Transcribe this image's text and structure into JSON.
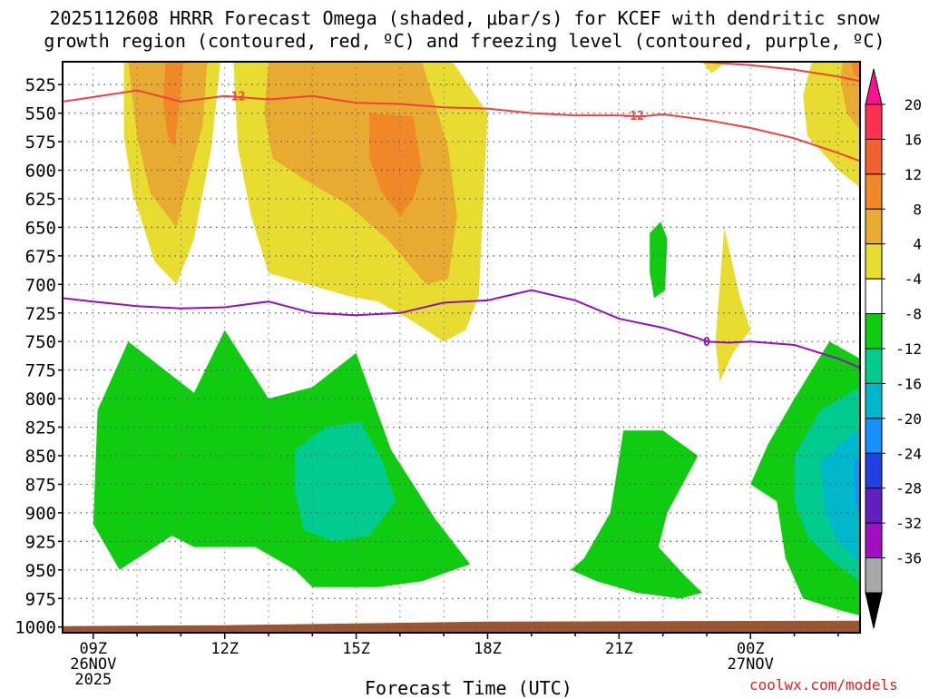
{
  "chart_data": {
    "type": "heatmap",
    "title_line1": "2025112608 HRRR Forecast Omega (shaded, μbar/s) for KCEF with dendritic snow",
    "title_line2": "growth region (contoured, red, ºC) and freezing level (contoured, purple, ºC)",
    "xlabel": "Forecast Time (UTC)",
    "credit": "coolwx.com/models",
    "x_range_hours": [
      8.3,
      26.5
    ],
    "y_range_mb": [
      505,
      1005
    ],
    "y_ticks": [
      525,
      550,
      575,
      600,
      625,
      650,
      675,
      700,
      725,
      750,
      775,
      800,
      825,
      850,
      875,
      900,
      925,
      950,
      975,
      1000
    ],
    "x_ticks": [
      {
        "h": 9,
        "lines": [
          "09Z",
          "26NOV",
          "2025"
        ]
      },
      {
        "h": 12,
        "lines": [
          "12Z"
        ]
      },
      {
        "h": 15,
        "lines": [
          "15Z"
        ]
      },
      {
        "h": 18,
        "lines": [
          "18Z"
        ]
      },
      {
        "h": 21,
        "lines": [
          "21Z"
        ]
      },
      {
        "h": 24,
        "lines": [
          "00Z",
          "27NOV"
        ]
      }
    ],
    "colorbar": {
      "labels": [
        "20",
        "16",
        "12",
        "8",
        "4",
        "-4",
        "-8",
        "-12",
        "-16",
        "-20",
        "-24",
        "-28",
        "-32",
        "-36"
      ],
      "colors": [
        "#ff3050",
        "#f06030",
        "#f08828",
        "#e8aa30",
        "#e8dc30",
        "#ffffff",
        "#10cc10",
        "#00cc90",
        "#00b8cc",
        "#1890ff",
        "#2040e0",
        "#6020c0",
        "#a010c0",
        "#a8a8a8"
      ],
      "top_arrow_color": "#ff1090",
      "bottom_arrow_color": "#000000"
    },
    "colors": {
      "yellow": "#e8dc30",
      "gold": "#e8aa30",
      "orange": "#f08828",
      "green": "#10cc10",
      "teal": "#00cc90",
      "cyan": "#00b8cc",
      "blue": "#1890ff",
      "red_contour": "#f04040",
      "purple_contour": "#9010c0",
      "ground": "#9b5530"
    },
    "omega_regions": [
      {
        "level": "yellow",
        "points": [
          [
            9.7,
            505
          ],
          [
            11.9,
            505
          ],
          [
            11.7,
            580
          ],
          [
            11.3,
            660
          ],
          [
            10.9,
            700
          ],
          [
            10.4,
            680
          ],
          [
            9.9,
            620
          ],
          [
            9.7,
            570
          ]
        ]
      },
      {
        "level": "yellow",
        "points": [
          [
            12.2,
            505
          ],
          [
            17.2,
            505
          ],
          [
            18.0,
            550
          ],
          [
            17.8,
            710
          ],
          [
            17.5,
            740
          ],
          [
            17.0,
            750
          ],
          [
            16.2,
            730
          ],
          [
            15.5,
            715
          ],
          [
            14.8,
            710
          ],
          [
            13.9,
            700
          ],
          [
            13.0,
            690
          ],
          [
            12.6,
            640
          ],
          [
            12.3,
            580
          ]
        ]
      },
      {
        "level": "gold",
        "points": [
          [
            9.8,
            505
          ],
          [
            11.6,
            505
          ],
          [
            11.5,
            560
          ],
          [
            11.1,
            620
          ],
          [
            10.9,
            650
          ],
          [
            10.3,
            620
          ],
          [
            10.0,
            570
          ]
        ]
      },
      {
        "level": "gold",
        "points": [
          [
            13.0,
            505
          ],
          [
            16.5,
            505
          ],
          [
            17.1,
            580
          ],
          [
            17.3,
            640
          ],
          [
            17.1,
            695
          ],
          [
            16.6,
            700
          ],
          [
            15.7,
            660
          ],
          [
            14.8,
            630
          ],
          [
            13.9,
            610
          ],
          [
            13.1,
            590
          ],
          [
            12.9,
            550
          ]
        ]
      },
      {
        "level": "orange",
        "points": [
          [
            10.65,
            505
          ],
          [
            11.05,
            505
          ],
          [
            10.95,
            550
          ],
          [
            10.85,
            580
          ],
          [
            10.7,
            570
          ],
          [
            10.6,
            540
          ]
        ]
      },
      {
        "level": "orange",
        "points": [
          [
            15.3,
            550
          ],
          [
            16.3,
            553
          ],
          [
            16.5,
            600
          ],
          [
            16.3,
            625
          ],
          [
            16.0,
            640
          ],
          [
            15.6,
            620
          ],
          [
            15.3,
            590
          ]
        ]
      },
      {
        "level": "yellow",
        "points": [
          [
            22.9,
            505
          ],
          [
            23.4,
            505
          ],
          [
            23.3,
            510
          ],
          [
            23.1,
            515
          ]
        ]
      },
      {
        "level": "yellow",
        "points": [
          [
            23.4,
            650
          ],
          [
            23.75,
            710
          ],
          [
            24.0,
            740
          ],
          [
            23.6,
            760
          ],
          [
            23.3,
            785
          ],
          [
            23.2,
            750
          ],
          [
            23.3,
            700
          ]
        ]
      },
      {
        "level": "yellow",
        "points": [
          [
            25.4,
            505
          ],
          [
            26.5,
            505
          ],
          [
            26.5,
            615
          ],
          [
            26.0,
            600
          ],
          [
            25.3,
            570
          ],
          [
            25.2,
            535
          ]
        ]
      },
      {
        "level": "gold",
        "points": [
          [
            26.1,
            505
          ],
          [
            26.5,
            505
          ],
          [
            26.5,
            565
          ],
          [
            26.2,
            550
          ],
          [
            26.05,
            520
          ]
        ]
      },
      {
        "level": "orange",
        "points": [
          [
            26.3,
            505
          ],
          [
            26.5,
            505
          ],
          [
            26.5,
            520
          ],
          [
            26.35,
            515
          ]
        ]
      },
      {
        "level": "green",
        "points": [
          [
            21.7,
            655
          ],
          [
            21.95,
            645
          ],
          [
            22.1,
            660
          ],
          [
            22.05,
            705
          ],
          [
            21.8,
            712
          ],
          [
            21.7,
            690
          ]
        ]
      },
      {
        "level": "green",
        "points": [
          [
            9.1,
            810
          ],
          [
            9.8,
            750
          ],
          [
            11.3,
            795
          ],
          [
            12.0,
            740
          ],
          [
            13.0,
            800
          ],
          [
            14.0,
            790
          ],
          [
            15.0,
            760
          ],
          [
            15.8,
            845
          ],
          [
            16.8,
            905
          ],
          [
            17.6,
            945
          ],
          [
            16.5,
            960
          ],
          [
            15.5,
            965
          ],
          [
            14.0,
            965
          ],
          [
            13.6,
            950
          ],
          [
            12.7,
            930
          ],
          [
            12.0,
            930
          ],
          [
            11.3,
            930
          ],
          [
            10.8,
            920
          ],
          [
            10.0,
            940
          ],
          [
            9.6,
            950
          ],
          [
            9.0,
            910
          ]
        ]
      },
      {
        "level": "teal",
        "points": [
          [
            13.6,
            845
          ],
          [
            14.3,
            825
          ],
          [
            15.1,
            820
          ],
          [
            15.6,
            855
          ],
          [
            15.9,
            890
          ],
          [
            15.3,
            920
          ],
          [
            14.5,
            925
          ],
          [
            13.8,
            915
          ],
          [
            13.6,
            880
          ]
        ]
      },
      {
        "level": "green",
        "points": [
          [
            21.1,
            828
          ],
          [
            22.0,
            828
          ],
          [
            22.8,
            850
          ],
          [
            22.1,
            900
          ],
          [
            21.9,
            930
          ],
          [
            22.5,
            955
          ],
          [
            22.9,
            970
          ],
          [
            22.4,
            975
          ],
          [
            21.4,
            970
          ],
          [
            20.5,
            960
          ],
          [
            19.9,
            950
          ],
          [
            20.2,
            940
          ],
          [
            20.8,
            900
          ]
        ]
      },
      {
        "level": "green",
        "points": [
          [
            25.0,
            800
          ],
          [
            25.8,
            750
          ],
          [
            26.5,
            765
          ],
          [
            26.5,
            990
          ],
          [
            26.0,
            985
          ],
          [
            25.2,
            975
          ],
          [
            24.8,
            940
          ],
          [
            24.6,
            890
          ],
          [
            24.0,
            875
          ],
          [
            24.4,
            840
          ]
        ]
      },
      {
        "level": "teal",
        "points": [
          [
            25.0,
            850
          ],
          [
            25.6,
            810
          ],
          [
            26.5,
            790
          ],
          [
            26.5,
            960
          ],
          [
            25.8,
            940
          ],
          [
            25.3,
            920
          ],
          [
            25.0,
            890
          ]
        ]
      },
      {
        "level": "cyan",
        "points": [
          [
            25.6,
            855
          ],
          [
            26.5,
            825
          ],
          [
            26.5,
            945
          ],
          [
            26.0,
            925
          ],
          [
            25.7,
            900
          ]
        ]
      },
      {
        "level": "blue",
        "points": [
          [
            26.38,
            855
          ],
          [
            26.5,
            852
          ],
          [
            26.5,
            905
          ],
          [
            26.4,
            890
          ]
        ]
      }
    ],
    "dgz_minus12_line": [
      [
        8.3,
        540
      ],
      [
        9.5,
        533
      ],
      [
        10.0,
        530
      ],
      [
        11.0,
        540
      ],
      [
        12.0,
        535
      ],
      [
        13.0,
        538
      ],
      [
        14.0,
        535
      ],
      [
        15.0,
        541
      ],
      [
        16.0,
        542
      ],
      [
        17.0,
        545
      ],
      [
        18.0,
        546
      ],
      [
        19.0,
        550
      ],
      [
        20.0,
        552
      ],
      [
        21.0,
        552
      ],
      [
        21.5,
        553
      ],
      [
        22.0,
        551
      ],
      [
        23.0,
        556
      ],
      [
        24.0,
        563
      ],
      [
        25.0,
        572
      ],
      [
        26.0,
        585
      ],
      [
        26.5,
        592
      ]
    ],
    "dgz_upper_line": [
      [
        22.8,
        505
      ],
      [
        24.0,
        508
      ],
      [
        25.0,
        512
      ],
      [
        26.0,
        518
      ],
      [
        26.5,
        522
      ]
    ],
    "dgz_labels": [
      {
        "h": 12.0,
        "mb": 535,
        "text": "-12"
      },
      {
        "h": 21.1,
        "mb": 552,
        "text": "-12"
      }
    ],
    "freezing_level_line": [
      [
        8.3,
        712
      ],
      [
        9.0,
        715
      ],
      [
        10.0,
        719
      ],
      [
        11.0,
        721
      ],
      [
        12.0,
        720
      ],
      [
        13.0,
        715
      ],
      [
        14.0,
        725
      ],
      [
        15.0,
        727
      ],
      [
        16.0,
        725
      ],
      [
        17.0,
        716
      ],
      [
        18.0,
        714
      ],
      [
        19.0,
        705
      ],
      [
        20.0,
        714
      ],
      [
        21.0,
        730
      ],
      [
        22.0,
        738
      ],
      [
        22.8,
        747
      ],
      [
        23.0,
        750
      ],
      [
        23.5,
        751
      ],
      [
        24.0,
        750
      ],
      [
        25.0,
        753
      ],
      [
        26.0,
        765
      ],
      [
        26.5,
        773
      ]
    ],
    "freezing_labels": [
      {
        "h": 23.0,
        "mb": 750,
        "text": "0"
      }
    ]
  }
}
